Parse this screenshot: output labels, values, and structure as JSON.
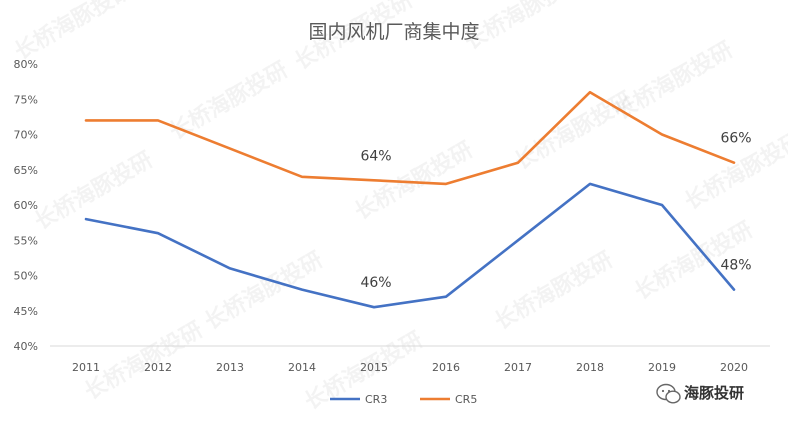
{
  "chart_data": {
    "type": "line",
    "title": "国内风机厂商集中度",
    "xlabel": "",
    "ylabel": "",
    "categories": [
      "2011",
      "2012",
      "2013",
      "2014",
      "2015",
      "2016",
      "2017",
      "2018",
      "2019",
      "2020"
    ],
    "ylim": [
      0.4,
      0.8
    ],
    "yticks": [
      0.4,
      0.45,
      0.5,
      0.55,
      0.6,
      0.65,
      0.7,
      0.75,
      0.8
    ],
    "ytick_labels": [
      "40%",
      "45%",
      "50%",
      "55%",
      "60%",
      "65%",
      "70%",
      "75%",
      "80%"
    ],
    "grid": false,
    "legend_position": "bottom",
    "series": [
      {
        "name": "CR3",
        "color": "#4472C4",
        "values": [
          0.58,
          0.56,
          0.51,
          0.48,
          0.455,
          0.47,
          0.55,
          0.63,
          0.6,
          0.48
        ],
        "labels": [
          {
            "index": 4,
            "text": "46%"
          },
          {
            "index": 9,
            "text": "48%"
          }
        ]
      },
      {
        "name": "CR5",
        "color": "#ED7D31",
        "values": [
          0.72,
          0.72,
          0.68,
          0.64,
          0.635,
          0.63,
          0.66,
          0.76,
          0.7,
          0.66
        ],
        "labels": [
          {
            "index": 4,
            "text": "64%"
          },
          {
            "index": 9,
            "text": "66%"
          }
        ]
      }
    ]
  },
  "watermark": {
    "text": "长桥海豚投研"
  },
  "brand": {
    "text": "海豚投研",
    "icon": "wechat-icon"
  }
}
